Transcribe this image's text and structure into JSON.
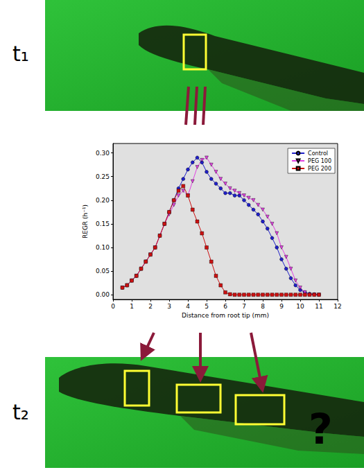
{
  "figure": {
    "top_label": "t₁",
    "bottom_label": "t₂",
    "question_mark": "?"
  },
  "chart_data": {
    "type": "line",
    "x_label": "Distance from root tip (mm)",
    "y_label": "REGR (h⁻¹)",
    "x": [
      0.5,
      0.75,
      1,
      1.25,
      1.5,
      1.75,
      2,
      2.25,
      2.5,
      2.75,
      3,
      3.25,
      3.5,
      3.75,
      4,
      4.25,
      4.5,
      4.75,
      5,
      5.25,
      5.5,
      5.75,
      6,
      6.25,
      6.5,
      6.75,
      7,
      7.25,
      7.5,
      7.75,
      8,
      8.25,
      8.5,
      8.75,
      9,
      9.25,
      9.5,
      9.75,
      10,
      10.25,
      10.5,
      10.75,
      11
    ],
    "series": [
      {
        "name": "Control",
        "color": "#1f1fc8",
        "marker": "circle",
        "values": [
          0.015,
          0.02,
          0.03,
          0.04,
          0.055,
          0.07,
          0.085,
          0.1,
          0.125,
          0.15,
          0.175,
          0.2,
          0.225,
          0.245,
          0.265,
          0.28,
          0.29,
          0.28,
          0.26,
          0.245,
          0.235,
          0.225,
          0.215,
          0.215,
          0.21,
          0.21,
          0.2,
          0.19,
          0.18,
          0.17,
          0.155,
          0.14,
          0.12,
          0.1,
          0.075,
          0.055,
          0.035,
          0.02,
          0.01,
          0.005,
          0.002,
          0.001,
          0
        ]
      },
      {
        "name": "PEG 100",
        "color": "#e040e0",
        "marker": "triangle_down",
        "values": [
          0.015,
          0.02,
          0.03,
          0.04,
          0.055,
          0.07,
          0.085,
          0.1,
          0.125,
          0.15,
          0.17,
          0.19,
          0.21,
          0.22,
          0.21,
          0.24,
          0.27,
          0.285,
          0.29,
          0.275,
          0.26,
          0.245,
          0.235,
          0.225,
          0.22,
          0.215,
          0.21,
          0.205,
          0.2,
          0.19,
          0.18,
          0.165,
          0.15,
          0.13,
          0.1,
          0.08,
          0.055,
          0.03,
          0.015,
          0.005,
          0,
          0,
          0
        ]
      },
      {
        "name": "PEG 200",
        "color": "#cc1111",
        "marker": "square",
        "values": [
          0.015,
          0.02,
          0.03,
          0.04,
          0.055,
          0.07,
          0.085,
          0.1,
          0.125,
          0.15,
          0.175,
          0.2,
          0.22,
          0.23,
          0.21,
          0.18,
          0.155,
          0.13,
          0.1,
          0.07,
          0.04,
          0.02,
          0.005,
          0.001,
          0,
          0,
          0,
          0,
          0,
          0,
          0,
          0,
          0,
          0,
          0,
          0,
          0,
          0,
          0,
          0,
          0,
          0,
          0
        ]
      }
    ],
    "xlim": [
      0,
      12
    ],
    "xticks": [
      0,
      1,
      2,
      3,
      4,
      5,
      6,
      7,
      8,
      9,
      10,
      11,
      12
    ],
    "ylim": [
      -0.01,
      0.32
    ],
    "yticks": [
      {
        "value": 0,
        "label": "0.00"
      },
      0.05,
      {
        "value": 0.1,
        "label": "0.10"
      },
      0.15,
      {
        "value": 0.2,
        "label": "0.20"
      },
      0.25,
      {
        "value": 0.3,
        "label": "0.30"
      }
    ],
    "grid": false,
    "legend": "upper right"
  }
}
